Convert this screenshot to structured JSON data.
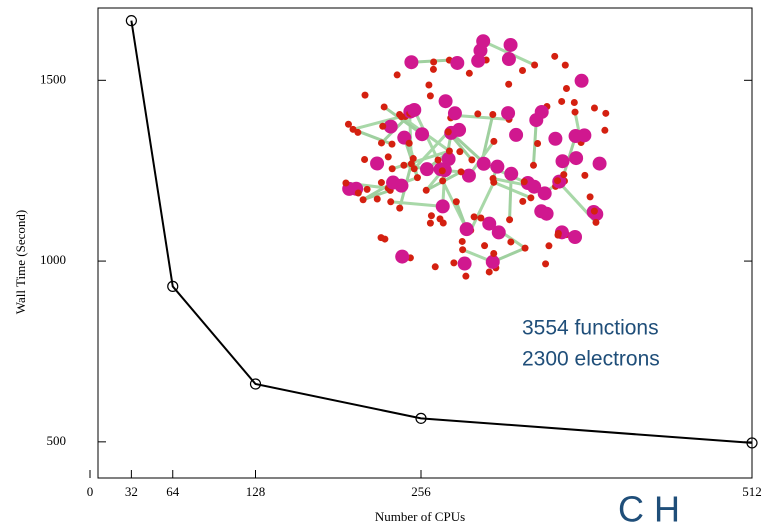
{
  "chart_data": {
    "type": "line",
    "x_label": "Number of CPUs",
    "y_label": "Wall Time (Second)",
    "annotations": [
      "3554 functions",
      "2300 electrons",
      "C H"
    ],
    "x": [
      32,
      64,
      128,
      256,
      512
    ],
    "series": [
      {
        "color": "#000000",
        "values": [
          1665,
          930,
          660,
          565,
          497
        ]
      }
    ],
    "xlim": [
      0,
      512
    ],
    "xticks": [
      0,
      32,
      64,
      128,
      256,
      512
    ],
    "ylim": [
      400,
      1700
    ],
    "yticks": [
      500,
      1000,
      1500
    ],
    "grid": false
  }
}
